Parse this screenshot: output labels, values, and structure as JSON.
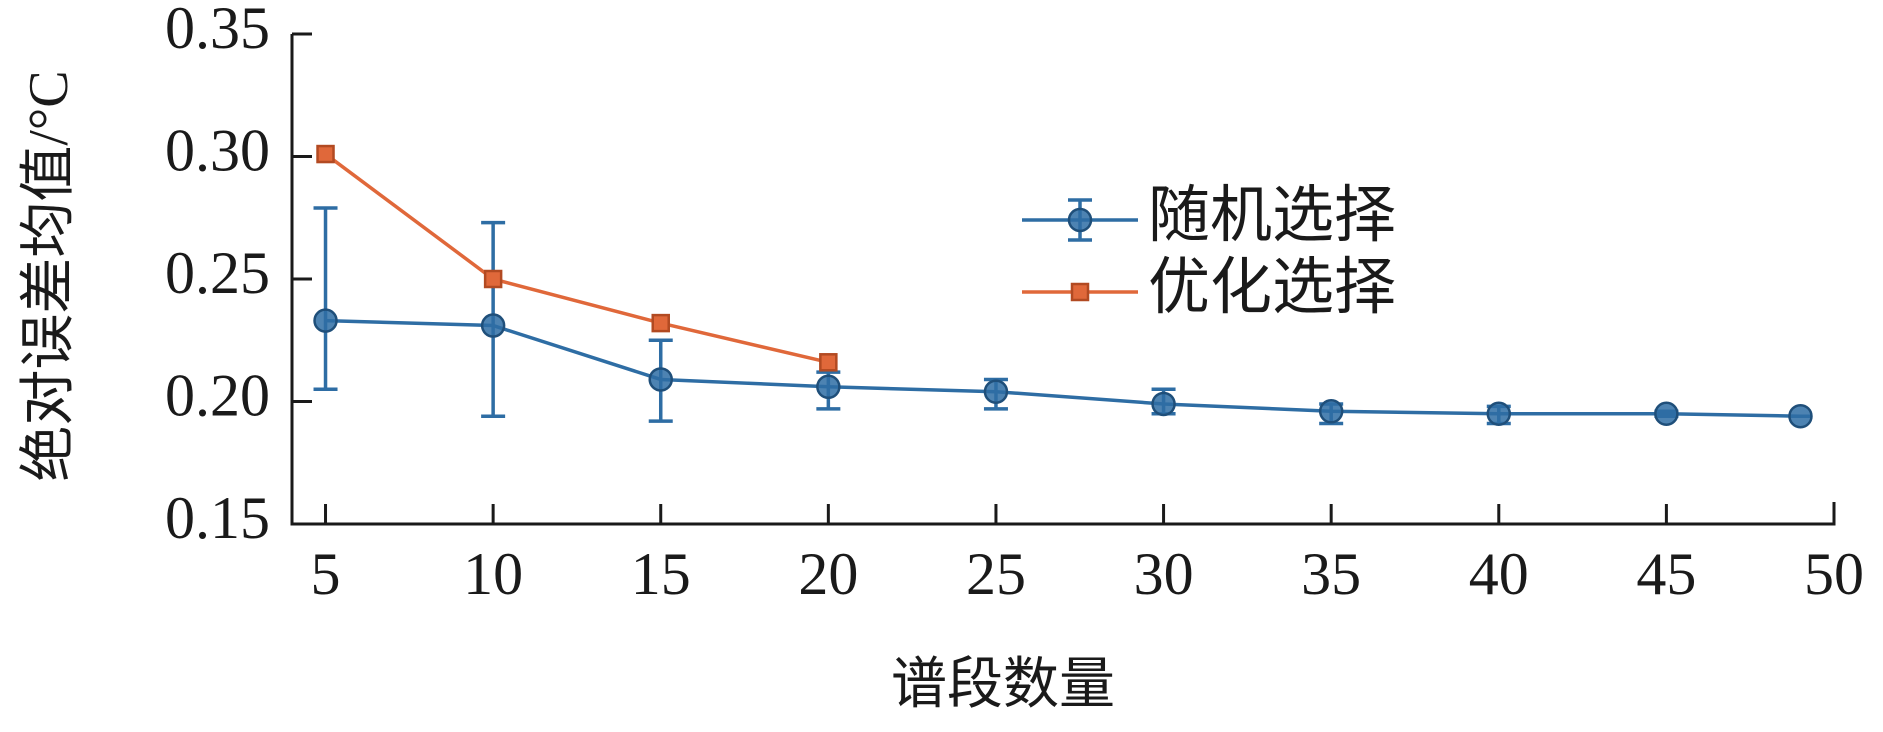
{
  "chart_data": {
    "type": "line",
    "x_label": "谱段数量",
    "y_label": "绝对误差均值/°C",
    "xlim": [
      4,
      50
    ],
    "xticks": [
      5,
      10,
      15,
      20,
      25,
      30,
      35,
      40,
      45,
      50
    ],
    "ylim": [
      0.15,
      0.35
    ],
    "yticks": [
      {
        "value": 0.15,
        "label": "0.15"
      },
      {
        "value": 0.2,
        "label": "0.20"
      },
      {
        "value": 0.25,
        "label": "0.25"
      },
      {
        "value": 0.3,
        "label": "0.30"
      },
      {
        "value": 0.35,
        "label": "0.35"
      }
    ],
    "legend": "upper center",
    "series": [
      {
        "name": "随机选择",
        "color": "#2e6da4",
        "marker": "circle",
        "x": [
          5,
          10,
          15,
          20,
          25,
          30,
          35,
          40,
          45,
          49
        ],
        "values": [
          0.233,
          0.231,
          0.209,
          0.206,
          0.204,
          0.199,
          0.196,
          0.195,
          0.195,
          0.194
        ],
        "error_lower": [
          0.028,
          0.037,
          0.017,
          0.009,
          0.007,
          0.004,
          0.005,
          0.004,
          0.001,
          0
        ],
        "error_upper": [
          0.046,
          0.042,
          0.016,
          0.006,
          0.005,
          0.006,
          0.003,
          0.003,
          0.001,
          0
        ]
      },
      {
        "name": "优化选择",
        "color": "#e0683a",
        "marker": "square",
        "x": [
          5,
          10,
          15,
          20
        ],
        "values": [
          0.301,
          0.25,
          0.232,
          0.216
        ]
      }
    ]
  }
}
